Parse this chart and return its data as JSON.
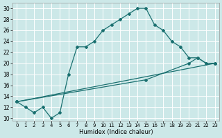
{
  "xlabel": "Humidex (Indice chaleur)",
  "bg_color": "#cce8e8",
  "grid_color": "#ffffff",
  "line_color": "#1a7070",
  "xlim": [
    -0.5,
    23.5
  ],
  "ylim": [
    9.5,
    31.0
  ],
  "xticks": [
    0,
    1,
    2,
    3,
    4,
    5,
    6,
    7,
    8,
    9,
    10,
    11,
    12,
    13,
    14,
    15,
    16,
    17,
    18,
    19,
    20,
    21,
    22,
    23
  ],
  "yticks": [
    10,
    12,
    14,
    16,
    18,
    20,
    22,
    24,
    26,
    28,
    30
  ],
  "line1_x": [
    0,
    1,
    2,
    3,
    4,
    5,
    6,
    7,
    8,
    9,
    10,
    11,
    12,
    13,
    14,
    15,
    16,
    17,
    18,
    19,
    20,
    21,
    22,
    23
  ],
  "line1_y": [
    13,
    12,
    11,
    12,
    10,
    11,
    18,
    23,
    23,
    24,
    26,
    27,
    28,
    29,
    30,
    30,
    27,
    26,
    24,
    23,
    21,
    21,
    20,
    20
  ],
  "line2_x": [
    0,
    23
  ],
  "line2_y": [
    13,
    20
  ],
  "line3_x": [
    0,
    15,
    20,
    21,
    22,
    23
  ],
  "line3_y": [
    13,
    17,
    20,
    21,
    20,
    20
  ]
}
